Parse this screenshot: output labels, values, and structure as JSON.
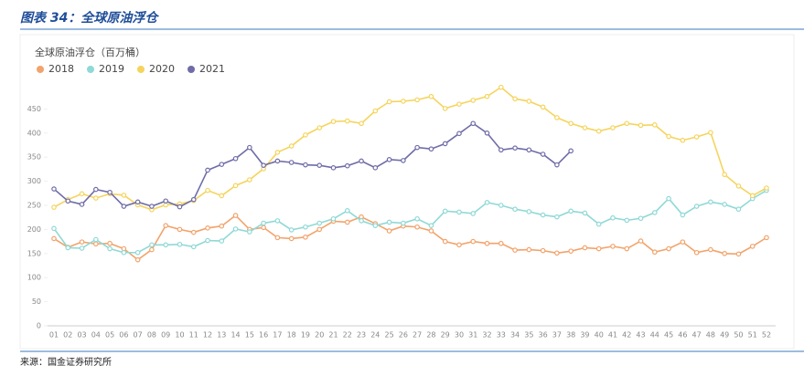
{
  "header": {
    "title": "图表 34：全球原油浮仓"
  },
  "source": "来源：国金证券研究所",
  "chart_data": {
    "type": "line",
    "title": "全球原油浮仓（百万桶）",
    "categories": [
      "01",
      "02",
      "03",
      "04",
      "05",
      "06",
      "07",
      "08",
      "09",
      "10",
      "11",
      "12",
      "13",
      "14",
      "15",
      "16",
      "17",
      "18",
      "19",
      "20",
      "21",
      "22",
      "23",
      "24",
      "25",
      "26",
      "27",
      "28",
      "29",
      "30",
      "31",
      "32",
      "33",
      "34",
      "35",
      "36",
      "37",
      "38",
      "39",
      "40",
      "41",
      "42",
      "43",
      "44",
      "45",
      "46",
      "47",
      "48",
      "49",
      "50",
      "51",
      "52"
    ],
    "series": [
      {
        "name": "2018",
        "color": "#f2a36b",
        "values": [
          181,
          163,
          174,
          170,
          171,
          160,
          137,
          158,
          208,
          200,
          194,
          203,
          207,
          229,
          200,
          204,
          183,
          181,
          184,
          200,
          217,
          215,
          226,
          212,
          197,
          207,
          205,
          197,
          175,
          168,
          175,
          171,
          171,
          157,
          158,
          156,
          151,
          155,
          162,
          160,
          165,
          160,
          176,
          153,
          160,
          174,
          152,
          158,
          150,
          149,
          165,
          183
        ]
      },
      {
        "name": "2019",
        "color": "#8fd9d6",
        "values": [
          202,
          162,
          161,
          179,
          160,
          152,
          152,
          168,
          168,
          169,
          164,
          177,
          176,
          201,
          195,
          213,
          218,
          199,
          205,
          213,
          222,
          239,
          218,
          208,
          215,
          213,
          222,
          208,
          238,
          236,
          233,
          256,
          250,
          242,
          237,
          230,
          226,
          238,
          234,
          211,
          224,
          219,
          223,
          235,
          264,
          230,
          248,
          257,
          252,
          242,
          264,
          281
        ]
      },
      {
        "name": "2020",
        "color": "#f5d45c",
        "values": [
          246,
          262,
          274,
          265,
          274,
          271,
          251,
          241,
          251,
          253,
          260,
          281,
          270,
          291,
          303,
          326,
          360,
          373,
          396,
          411,
          424,
          425,
          420,
          446,
          465,
          466,
          469,
          476,
          451,
          460,
          468,
          476,
          495,
          471,
          466,
          454,
          432,
          420,
          411,
          404,
          411,
          420,
          416,
          417,
          393,
          385,
          392,
          401,
          314,
          290,
          270,
          286
        ]
      },
      {
        "name": "2021",
        "color": "#6f6ca8",
        "values": [
          284,
          259,
          252,
          283,
          277,
          248,
          257,
          248,
          259,
          247,
          262,
          323,
          335,
          347,
          370,
          333,
          342,
          339,
          334,
          333,
          328,
          332,
          342,
          328,
          345,
          343,
          370,
          367,
          378,
          399,
          420,
          400,
          365,
          369,
          365,
          356,
          334,
          363,
          null,
          null,
          null,
          null,
          null,
          null,
          null,
          null,
          null,
          null,
          null,
          null,
          null,
          null
        ]
      }
    ],
    "ylim": [
      0,
      500
    ],
    "yticks": [
      0,
      50,
      100,
      150,
      200,
      250,
      300,
      350,
      400,
      450
    ],
    "grid": false
  }
}
